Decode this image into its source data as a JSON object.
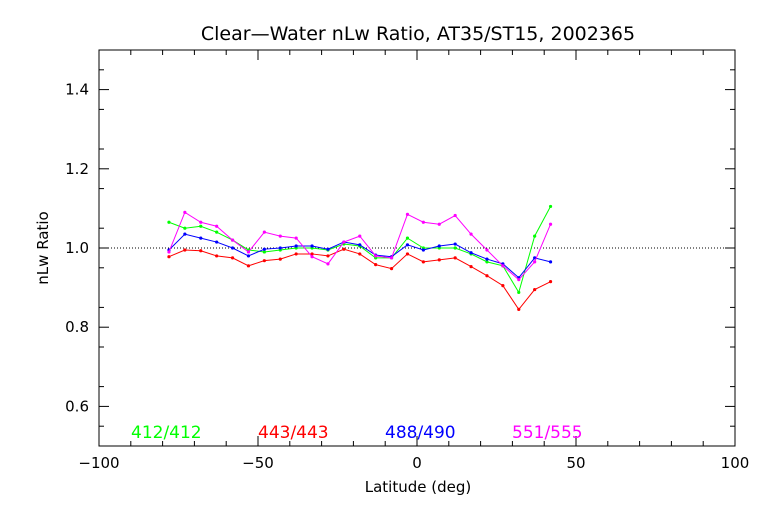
{
  "chart_data": {
    "type": "line",
    "title": "Clear—Water nLw Ratio, AT35/ST15, 2002365",
    "xlabel": "Latitude (deg)",
    "ylabel": "nLw Ratio",
    "xlim": [
      -100,
      100
    ],
    "ylim": [
      0.5,
      1.5
    ],
    "xticks": [
      -100,
      -50,
      0,
      50,
      100
    ],
    "xtick_labels": [
      "−100",
      "−50",
      "0",
      "50",
      "100"
    ],
    "yticks": [
      0.6,
      0.8,
      1.0,
      1.2,
      1.4
    ],
    "ytick_labels": [
      "0.6",
      "0.8",
      "1.0",
      "1.2",
      "1.4"
    ],
    "reference_line": 1.0,
    "grid": false,
    "legend_position": "bottom",
    "x": [
      -78,
      -73,
      -68,
      -63,
      -58,
      -53,
      -48,
      -43,
      -38,
      -33,
      -28,
      -23,
      -18,
      -13,
      -8,
      -3,
      2,
      7,
      12,
      17,
      22,
      27,
      32,
      37,
      42
    ],
    "series": [
      {
        "name": "412/412",
        "color": "#00ff00",
        "values": [
          1.065,
          1.05,
          1.055,
          1.04,
          1.02,
          0.995,
          0.99,
          0.995,
          1.0,
          1.0,
          0.995,
          1.01,
          1.005,
          0.975,
          0.975,
          1.025,
          1.0,
          1.0,
          1.0,
          0.985,
          0.965,
          0.955,
          0.888,
          1.03,
          1.105
        ]
      },
      {
        "name": "443/443",
        "color": "#ff0000",
        "values": [
          0.978,
          0.995,
          0.993,
          0.98,
          0.975,
          0.955,
          0.968,
          0.972,
          0.985,
          0.985,
          0.98,
          0.997,
          0.985,
          0.958,
          0.948,
          0.985,
          0.965,
          0.97,
          0.975,
          0.953,
          0.93,
          0.905,
          0.845,
          0.895,
          0.915
        ]
      },
      {
        "name": "488/490",
        "color": "#0000ff",
        "values": [
          0.995,
          1.035,
          1.025,
          1.015,
          1.0,
          0.98,
          0.997,
          1.0,
          1.005,
          1.005,
          0.997,
          1.015,
          1.008,
          0.982,
          0.978,
          1.008,
          0.995,
          1.005,
          1.01,
          0.988,
          0.972,
          0.96,
          0.925,
          0.975,
          0.965
        ]
      },
      {
        "name": "551/555",
        "color": "#ff00ff",
        "values": [
          0.99,
          1.09,
          1.065,
          1.055,
          1.02,
          0.99,
          1.04,
          1.03,
          1.025,
          0.978,
          0.96,
          1.015,
          1.03,
          0.98,
          0.975,
          1.085,
          1.065,
          1.06,
          1.082,
          1.035,
          0.995,
          0.955,
          0.92,
          0.965,
          1.06
        ]
      }
    ]
  }
}
